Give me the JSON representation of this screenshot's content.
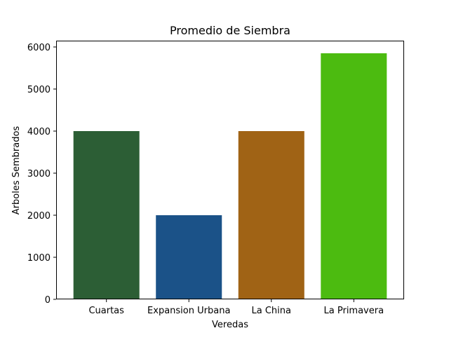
{
  "chart_data": {
    "type": "bar",
    "title": "Promedio de Siembra",
    "xlabel": "Veredas",
    "ylabel": "Arboles Sembrados",
    "categories": [
      "Cuartas",
      "Expansion Urbana",
      "La China",
      "La Primavera"
    ],
    "values": [
      4000,
      2000,
      4000,
      5850
    ],
    "colors": [
      "#2c5e35",
      "#1b5288",
      "#a06315",
      "#4cbb10"
    ],
    "ylim": [
      0,
      6150
    ],
    "yticks": [
      0,
      1000,
      2000,
      3000,
      4000,
      5000,
      6000
    ],
    "grid": false
  }
}
